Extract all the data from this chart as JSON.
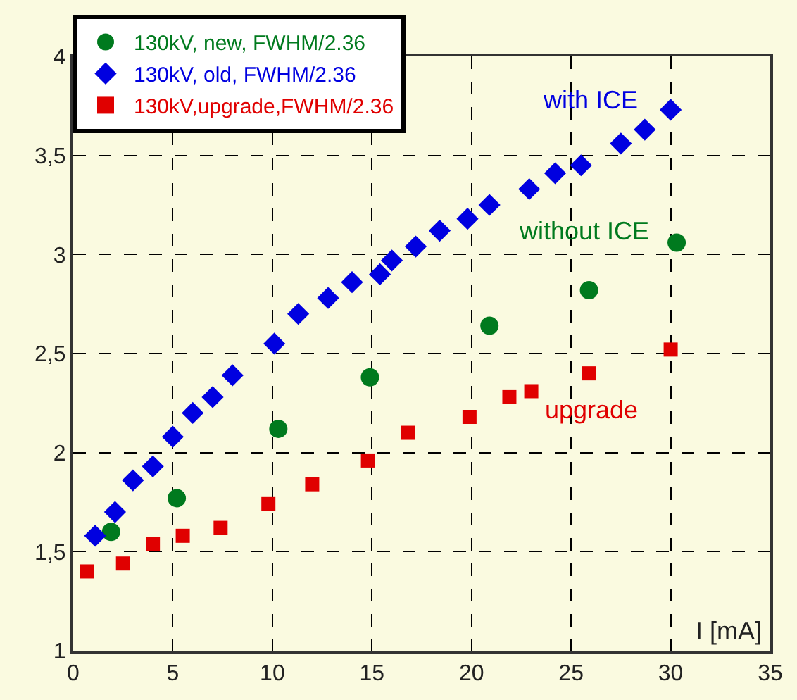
{
  "chart_data": {
    "type": "scatter",
    "xlabel": "I [mA]",
    "xlim": [
      0,
      35
    ],
    "xticks": [
      0,
      5,
      10,
      15,
      20,
      25,
      30,
      35
    ],
    "ylim": [
      1,
      4
    ],
    "yticks": [
      1,
      {
        "value": 1.5,
        "label": "1,5"
      },
      2,
      {
        "value": 2.5,
        "label": "2,5"
      },
      3,
      {
        "value": 3.5,
        "label": "3,5"
      },
      4
    ],
    "grid": true,
    "legend": "top left",
    "series": [
      {
        "name": "130kV, new, FWHM/2.36",
        "color": "#007a1e",
        "marker": "circle",
        "x": [
          1.9,
          5.2,
          10.3,
          14.9,
          20.9,
          25.9,
          30.3
        ],
        "values": [
          1.6,
          1.77,
          2.12,
          2.38,
          2.64,
          2.82,
          3.06
        ]
      },
      {
        "name": "130kV, old, FWHM/2.36",
        "color": "#0000e0",
        "marker": "diamond",
        "x": [
          1.1,
          2.1,
          3.0,
          4.0,
          5.0,
          6.0,
          7.0,
          8.0,
          10.1,
          11.3,
          12.8,
          14.0,
          15.4,
          16.0,
          17.2,
          18.4,
          19.8,
          20.9,
          22.9,
          24.2,
          25.5,
          27.5,
          28.7,
          30.0
        ],
        "values": [
          1.58,
          1.7,
          1.86,
          1.93,
          2.08,
          2.2,
          2.28,
          2.39,
          2.55,
          2.7,
          2.78,
          2.86,
          2.9,
          2.97,
          3.04,
          3.12,
          3.18,
          3.25,
          3.33,
          3.41,
          3.45,
          3.56,
          3.63,
          3.73
        ]
      },
      {
        "name": "130kV,upgrade,FWHM/2.36",
        "color": "#e00000",
        "marker": "square",
        "x": [
          0.7,
          2.5,
          4.0,
          5.5,
          7.4,
          9.8,
          12.0,
          14.8,
          16.8,
          19.9,
          21.9,
          23.0,
          25.9,
          30.0
        ],
        "values": [
          1.4,
          1.44,
          1.54,
          1.58,
          1.62,
          1.74,
          1.84,
          1.96,
          2.1,
          2.18,
          2.28,
          2.31,
          2.4,
          2.52
        ]
      }
    ],
    "annotations": [
      "with ICE",
      "without ICE",
      "upgrade"
    ]
  }
}
